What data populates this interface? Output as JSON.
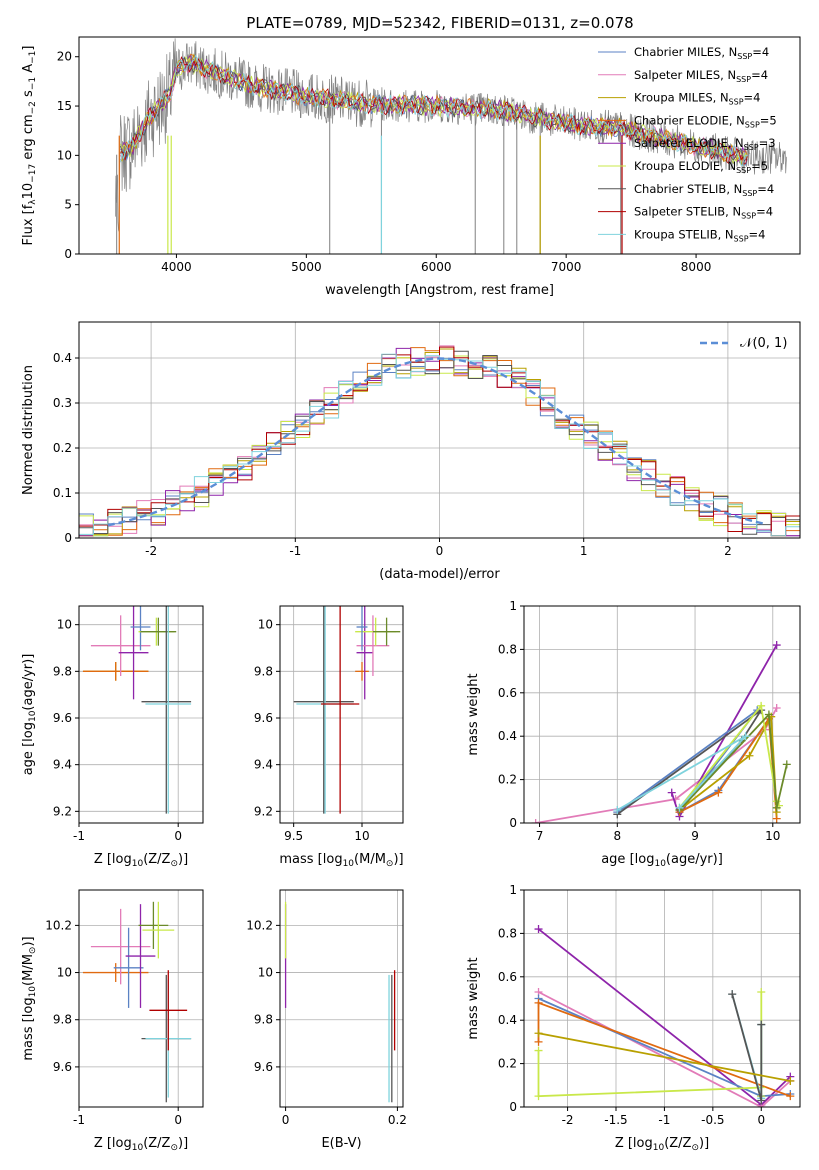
{
  "figure": {
    "title": "PLATE=0789, MJD=52342, FIBERID=0131, z=0.078"
  },
  "series_styles": [
    {
      "name": "Chabrier MILES",
      "color": "#5b82c4"
    },
    {
      "name": "Salpeter MILES",
      "color": "#e27bb8"
    },
    {
      "name": "Kroupa MILES",
      "color": "#b8a000"
    },
    {
      "name": "Chabrier ELODIE",
      "color": "#e06a10"
    },
    {
      "name": "Salpeter ELODIE",
      "color": "#8e24aa"
    },
    {
      "name": "Kroupa ELODIE",
      "color": "#c9e84a"
    },
    {
      "name": "Chabrier STELIB",
      "color": "#555555"
    },
    {
      "name": "Salpeter STELIB",
      "color": "#b00000"
    },
    {
      "name": "Kroupa STELIB",
      "color": "#7fd3dd"
    }
  ],
  "chart_data": [
    {
      "type": "line",
      "title": "PLATE=0789, MJD=52342, FIBERID=0131, z=0.078",
      "xlabel": "wavelength [Angstrom, rest frame]",
      "ylabel_parts": [
        "Flux [f",
        "λ",
        "10",
        "−17",
        " erg cm",
        "−2",
        " s",
        "−1",
        " A",
        "−1",
        "]"
      ],
      "xlim": [
        3250,
        8800
      ],
      "ylim": [
        0,
        22
      ],
      "xticks": [
        4000,
        5000,
        6000,
        7000,
        8000
      ],
      "yticks": [
        0,
        5,
        10,
        15,
        20
      ],
      "grid": false,
      "legend_position": "top-right",
      "legend": [
        {
          "label": "Chabrier MILES, N",
          "sub": "SSP",
          "suffix": "=4"
        },
        {
          "label": "Salpeter MILES, N",
          "sub": "SSP",
          "suffix": "=4"
        },
        {
          "label": "Kroupa MILES, N",
          "sub": "SSP",
          "suffix": "=4"
        },
        {
          "label": "Chabrier ELODIE, N",
          "sub": "SSP",
          "suffix": "=5"
        },
        {
          "label": "Salpeter ELODIE, N",
          "sub": "SSP",
          "suffix": "=3"
        },
        {
          "label": "Kroupa ELODIE, N",
          "sub": "SSP",
          "suffix": "=5"
        },
        {
          "label": "Chabrier STELIB, N",
          "sub": "SSP",
          "suffix": "=4"
        },
        {
          "label": "Salpeter STELIB, N",
          "sub": "SSP",
          "suffix": "=4"
        },
        {
          "label": "Kroupa STELIB, N",
          "sub": "SSP",
          "suffix": "=4"
        }
      ],
      "data_spectrum_color": "#808080",
      "data_spectrum_range": [
        3530,
        8700
      ],
      "model_continuum": {
        "x": [
          3530,
          3650,
          3800,
          3950,
          4000,
          4100,
          4300,
          4600,
          5000,
          5500,
          6000,
          6500,
          7000,
          7400,
          7800,
          8400
        ],
        "y": [
          10.0,
          10.8,
          14.0,
          16.2,
          18.6,
          19.4,
          18.4,
          17.0,
          16.0,
          15.2,
          15.0,
          14.6,
          13.2,
          12.8,
          11.5,
          9.8
        ]
      }
    },
    {
      "type": "histogram",
      "xlabel": "(data-model)/error",
      "ylabel": "Normed distribution",
      "xlim": [
        -2.5,
        2.5
      ],
      "ylim": [
        0,
        0.48
      ],
      "xticks": [
        -2,
        -1,
        0,
        1,
        2
      ],
      "yticks": [
        0.0,
        0.1,
        0.2,
        0.3,
        0.4
      ],
      "grid": true,
      "legend_position": "top-right",
      "reference_curve": {
        "label": "𝒩(0, 1)",
        "color": "#5b8ed6",
        "style": "dashed",
        "mean": 0,
        "sigma": 1
      }
    },
    {
      "type": "scatter",
      "xlabel_parts": [
        "Z [log",
        "10",
        "(Z/Z",
        "⊙",
        ")]"
      ],
      "ylabel_parts": [
        "age  [log",
        "10",
        "(age/yr)]"
      ],
      "xlim": [
        -1.0,
        0.25
      ],
      "ylim": [
        9.15,
        10.08
      ],
      "xticks": [
        -1,
        0
      ],
      "yticks": [
        9.2,
        9.4,
        9.6,
        9.8,
        10.0
      ],
      "grid": true,
      "points": [
        {
          "x": -0.63,
          "y": 9.8,
          "xerr": 0.33,
          "yerr": 0.04,
          "color": "#b8a000"
        },
        {
          "x": -0.63,
          "y": 9.8,
          "xerr": 0.33,
          "yerr": 0.04,
          "color": "#e06a10"
        },
        {
          "x": -0.58,
          "y": 9.91,
          "xerr": 0.3,
          "yerr": 0.13,
          "color": "#e27bb8"
        },
        {
          "x": -0.45,
          "y": 9.88,
          "xerr": 0.15,
          "yerr": 0.2,
          "color": "#8e24aa"
        },
        {
          "x": -0.38,
          "y": 9.99,
          "xerr": 0.1,
          "yerr": 0.1,
          "color": "#5b82c4"
        },
        {
          "x": -0.22,
          "y": 9.97,
          "xerr": 0.18,
          "yerr": 0.06,
          "color": "#c9e84a"
        },
        {
          "x": -0.2,
          "y": 9.97,
          "xerr": 0.18,
          "yerr": 0.06,
          "color": "#6b8a2a"
        },
        {
          "x": -0.12,
          "y": 9.67,
          "xerr": 0.25,
          "yerr": 0.48,
          "color": "#555555"
        },
        {
          "x": -0.1,
          "y": 9.66,
          "xerr": 0.23,
          "yerr": 0.47,
          "color": "#7fd3dd"
        }
      ]
    },
    {
      "type": "scatter",
      "xlabel_parts": [
        "mass [log",
        "10",
        "(M/M",
        "⊙",
        ")]"
      ],
      "ylabel": "",
      "xlim": [
        9.4,
        10.3
      ],
      "ylim": [
        9.15,
        10.08
      ],
      "xticks": [
        9.5,
        10.0
      ],
      "yticks": [
        9.2,
        9.4,
        9.6,
        9.8,
        10.0
      ],
      "grid": true,
      "points": [
        {
          "x": 9.72,
          "y": 9.67,
          "xerr": 0.22,
          "yerr": 0.48,
          "color": "#555555"
        },
        {
          "x": 9.73,
          "y": 9.66,
          "xerr": 0.21,
          "yerr": 0.47,
          "color": "#7fd3dd"
        },
        {
          "x": 9.84,
          "y": 9.66,
          "xerr": 0.14,
          "yerr": 0.47,
          "color": "#b00000"
        },
        {
          "x": 10.0,
          "y": 9.8,
          "xerr": 0.05,
          "yerr": 0.04,
          "color": "#e06a10"
        },
        {
          "x": 10.02,
          "y": 9.88,
          "xerr": 0.06,
          "yerr": 0.2,
          "color": "#8e24aa"
        },
        {
          "x": 10.08,
          "y": 9.91,
          "xerr": 0.12,
          "yerr": 0.13,
          "color": "#e27bb8"
        },
        {
          "x": 10.1,
          "y": 9.97,
          "xerr": 0.15,
          "yerr": 0.06,
          "color": "#c9e84a"
        },
        {
          "x": 10.18,
          "y": 9.97,
          "xerr": 0.1,
          "yerr": 0.06,
          "color": "#6b8a2a"
        },
        {
          "x": 10.0,
          "y": 9.99,
          "xerr": 0.04,
          "yerr": 0.1,
          "color": "#5b82c4"
        }
      ]
    },
    {
      "type": "line",
      "xlabel_parts": [
        "age  [log",
        "10",
        "(age/yr)]"
      ],
      "ylabel": "mass weight",
      "xlim": [
        6.8,
        10.35
      ],
      "ylim": [
        0,
        1.0
      ],
      "xticks": [
        7,
        8,
        9,
        10
      ],
      "yticks": [
        0.0,
        0.2,
        0.4,
        0.6,
        0.8,
        1.0
      ],
      "grid": true,
      "series": [
        {
          "color": "#e27bb8",
          "x": [
            6.95,
            8.75,
            9.9,
            10.05
          ],
          "y": [
            0.0,
            0.11,
            0.43,
            0.53
          ]
        },
        {
          "color": "#8e24aa",
          "x": [
            8.7,
            8.8,
            10.05
          ],
          "y": [
            0.14,
            0.03,
            0.82
          ]
        },
        {
          "color": "#5b82c4",
          "x": [
            8.0,
            9.8,
            8.8,
            9.3,
            9.95
          ],
          "y": [
            0.05,
            0.52,
            0.05,
            0.15,
            0.48
          ]
        },
        {
          "color": "#555555",
          "x": [
            8.0,
            9.85,
            9.6,
            8.8
          ],
          "y": [
            0.04,
            0.52,
            0.38,
            0.06
          ]
        },
        {
          "color": "#e06a10",
          "x": [
            8.8,
            9.3,
            9.95,
            10.05
          ],
          "y": [
            0.05,
            0.14,
            0.48,
            0.02
          ]
        },
        {
          "color": "#b8a000",
          "x": [
            8.8,
            9.7,
            9.98,
            10.05
          ],
          "y": [
            0.06,
            0.31,
            0.49,
            0.05
          ]
        },
        {
          "color": "#c9e84a",
          "x": [
            8.8,
            9.85,
            10.05,
            10.08
          ],
          "y": [
            0.07,
            0.54,
            0.1,
            0.08
          ]
        },
        {
          "color": "#6b8a2a",
          "x": [
            8.8,
            9.95,
            10.05,
            10.18
          ],
          "y": [
            0.06,
            0.5,
            0.07,
            0.27
          ]
        },
        {
          "color": "#7fd3dd",
          "x": [
            8.0,
            9.65,
            8.8
          ],
          "y": [
            0.06,
            0.4,
            0.07
          ]
        }
      ]
    },
    {
      "type": "scatter",
      "xlabel_parts": [
        "Z [log",
        "10",
        "(Z/Z",
        "⊙",
        ")]"
      ],
      "ylabel_parts": [
        "mass [log",
        "10",
        "(M/M",
        "⊙",
        ")]"
      ],
      "xlim": [
        -1.0,
        0.25
      ],
      "ylim": [
        9.43,
        10.35
      ],
      "xticks": [
        -1,
        0
      ],
      "yticks": [
        9.6,
        9.8,
        10.0,
        10.2
      ],
      "grid": true,
      "points": [
        {
          "x": -0.63,
          "y": 10.0,
          "xerr": 0.33,
          "yerr": 0.04,
          "color": "#e06a10"
        },
        {
          "x": -0.58,
          "y": 10.11,
          "xerr": 0.3,
          "yerr": 0.16,
          "color": "#e27bb8"
        },
        {
          "x": -0.5,
          "y": 10.02,
          "xerr": 0.15,
          "yerr": 0.17,
          "color": "#5b82c4"
        },
        {
          "x": -0.38,
          "y": 10.07,
          "xerr": 0.15,
          "yerr": 0.22,
          "color": "#8e24aa"
        },
        {
          "x": -0.25,
          "y": 10.2,
          "xerr": 0.15,
          "yerr": 0.1,
          "color": "#6b8a2a"
        },
        {
          "x": -0.2,
          "y": 10.18,
          "xerr": 0.16,
          "yerr": 0.12,
          "color": "#c9e84a"
        },
        {
          "x": -0.12,
          "y": 9.72,
          "xerr": 0.25,
          "yerr": 0.27,
          "color": "#555555"
        },
        {
          "x": -0.1,
          "y": 9.72,
          "xerr": 0.23,
          "yerr": 0.25,
          "color": "#7fd3dd"
        },
        {
          "x": -0.1,
          "y": 9.84,
          "xerr": 0.19,
          "yerr": 0.17,
          "color": "#b00000"
        }
      ]
    },
    {
      "type": "scatter",
      "xlabel": "E(B-V)",
      "ylabel": "",
      "xlim": [
        -0.01,
        0.21
      ],
      "ylim": [
        9.43,
        10.35
      ],
      "xticks": [
        0.0,
        0.2
      ],
      "yticks": [
        9.6,
        9.8,
        10.0,
        10.2
      ],
      "grid": true,
      "points": [
        {
          "x": 0.0,
          "y": 10.07,
          "xerr": 0,
          "yerr": 0.22,
          "color": "#8e24aa"
        },
        {
          "x": 0.0,
          "y": 10.18,
          "xerr": 0,
          "yerr": 0.12,
          "color": "#c9e84a"
        },
        {
          "x": 0.185,
          "y": 9.72,
          "xerr": 0,
          "yerr": 0.27,
          "color": "#7fd3dd"
        },
        {
          "x": 0.19,
          "y": 9.72,
          "xerr": 0,
          "yerr": 0.27,
          "color": "#555555"
        },
        {
          "x": 0.195,
          "y": 9.84,
          "xerr": 0,
          "yerr": 0.17,
          "color": "#b00000"
        }
      ]
    },
    {
      "type": "line",
      "xlabel_parts": [
        "Z [log",
        "10",
        "(Z/Z",
        "⊙",
        ")]"
      ],
      "ylabel": "mass weight",
      "xlim": [
        -2.45,
        0.4
      ],
      "ylim": [
        0,
        1.0
      ],
      "xticks": [
        -2.0,
        -1.5,
        -1.0,
        -0.5,
        0.0
      ],
      "yticks": [
        0.0,
        0.2,
        0.4,
        0.6,
        0.8,
        1.0
      ],
      "grid": true,
      "series": [
        {
          "color": "#8e24aa",
          "x": [
            -2.3,
            0.0,
            0.3
          ],
          "y": [
            0.82,
            0.01,
            0.14
          ]
        },
        {
          "color": "#e27bb8",
          "x": [
            -2.3,
            0.0,
            0.3
          ],
          "y": [
            0.53,
            0.0,
            0.12
          ]
        },
        {
          "color": "#5b82c4",
          "x": [
            -2.3,
            0.0,
            0.3
          ],
          "y": [
            0.5,
            0.05,
            0.06
          ]
        },
        {
          "color": "#e06a10",
          "x": [
            -2.3,
            -2.3,
            0.3
          ],
          "y": [
            0.3,
            0.48,
            0.05
          ]
        },
        {
          "color": "#c9e84a",
          "x": [
            -2.3,
            -2.3,
            0.0,
            0.0,
            0.0
          ],
          "y": [
            0.26,
            0.05,
            0.09,
            0.53,
            0.05
          ]
        },
        {
          "color": "#7fd3dd",
          "x": [
            -0.3,
            0.0,
            0.0
          ],
          "y": [
            0.52,
            0.04,
            0.38
          ]
        },
        {
          "color": "#555555",
          "x": [
            -0.3,
            0.0,
            0.0
          ],
          "y": [
            0.52,
            0.03,
            0.38
          ]
        },
        {
          "color": "#b8a000",
          "x": [
            -2.3,
            0.3
          ],
          "y": [
            0.34,
            0.12
          ]
        }
      ]
    }
  ]
}
